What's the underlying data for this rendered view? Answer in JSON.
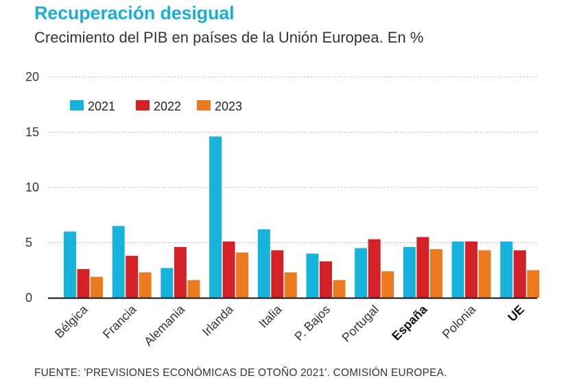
{
  "title": "Recuperación desigual",
  "subtitle": "Crecimiento del PIB en países de la Unión Europea. En %",
  "source": "FUENTE: 'PREVISIONES ECONÓMICAS DE OTOÑO 2021'. COMISIÓN EUROPEA.",
  "chart_data": {
    "type": "bar",
    "categories": [
      "Bélgica",
      "Francia",
      "Alemania",
      "Irlanda",
      "Italia",
      "P. Bajos",
      "Portugal",
      "España",
      "Polonia",
      "UE"
    ],
    "highlighted_categories": [
      "España",
      "UE"
    ],
    "series": [
      {
        "name": "2021",
        "color": "#16b4dc",
        "values": [
          6.0,
          6.5,
          2.7,
          14.6,
          6.2,
          4.0,
          4.5,
          4.6,
          5.1,
          5.1
        ]
      },
      {
        "name": "2022",
        "color": "#d42027",
        "values": [
          2.6,
          3.8,
          4.6,
          5.1,
          4.3,
          3.3,
          5.3,
          5.5,
          5.1,
          4.3
        ]
      },
      {
        "name": "2023",
        "color": "#ec7a1f",
        "values": [
          1.9,
          2.3,
          1.6,
          4.1,
          2.3,
          1.6,
          2.4,
          4.4,
          4.3,
          2.5
        ]
      }
    ],
    "yticks": [
      0,
      5,
      10,
      15,
      20
    ],
    "ylim": [
      0,
      20
    ],
    "grid": "dotted horizontal",
    "legend": "top-left"
  }
}
